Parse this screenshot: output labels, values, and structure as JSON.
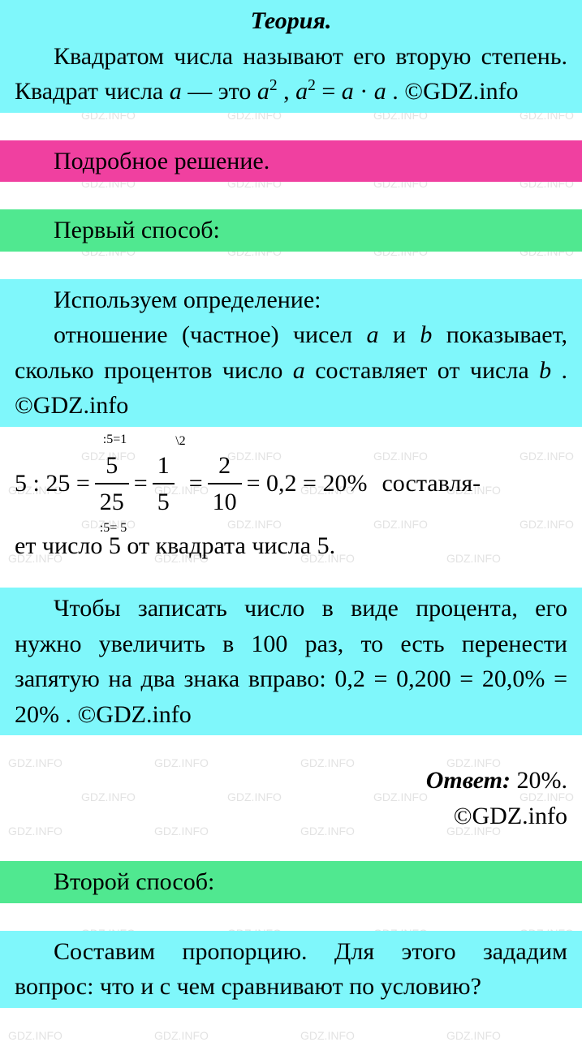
{
  "watermark_text": "GDZ.INFO",
  "watermark_color": "#cccccc",
  "colors": {
    "cyan": "#7ff7fb",
    "magenta": "#f040a0",
    "green": "#50e890",
    "text": "#000000",
    "background": "#ffffff"
  },
  "theory": {
    "title": "Теория.",
    "body_pre": "Квадратом числа называют его вто­рую степень. Квадрат числа ",
    "var_a": "a",
    "dash": " — это ",
    "a2": "a",
    "a2_exp": "2",
    "comma": " , ",
    "eq_lhs_a": "a",
    "eq_lhs_exp": "2",
    "eq_mid": " = ",
    "eq_rhs_a1": "a",
    "eq_dot": " · ",
    "eq_rhs_a2": "a",
    "tail": " . ©GDZ.info"
  },
  "detailed": "Подробное решение.",
  "method1": "Первый способ:",
  "definition": {
    "line1": "Используем определение:",
    "line2_pre": "отношение (частное) чисел ",
    "var_a": "a",
    "and": " и ",
    "var_b": "b",
    "line2_post": " по­казывает, сколько процентов число ",
    "var_a2": "a",
    "line3_pre": " со­ставляет от числа ",
    "var_b2": "b",
    "line3_post": " . ©GDZ.info"
  },
  "calc": {
    "lhs": "5 : 25 =",
    "frac1_num": "5",
    "frac1_den": "25",
    "frac1_top_note": ":5=1",
    "frac1_bot_note": ":5= 5",
    "eq1": "=",
    "frac2_num": "1",
    "frac2_den": "5",
    "frac2_top_note": "\\2",
    "eq2": "=",
    "frac3_num": "2",
    "frac3_den": "10",
    "eq3": "= 0,2 = 20%",
    "tail": "составля-",
    "line2": "ет число 5 от квадрата числа 5."
  },
  "percent_note": "Чтобы записать число в виде процен­та, его нужно увеличить в 100 раз, то есть перенести запятую на два знака вправо:  0,2 = 0,200 = 20,0% = 20% . ©GDZ.info",
  "answer": {
    "label": "Ответ:",
    "value": " 20%.",
    "copyright": "©GDZ.info"
  },
  "method2": "Второй способ:",
  "proportion": "Составим пропорцию. Для этого за­дадим вопрос: что и с чем сравнивают по условию?"
}
